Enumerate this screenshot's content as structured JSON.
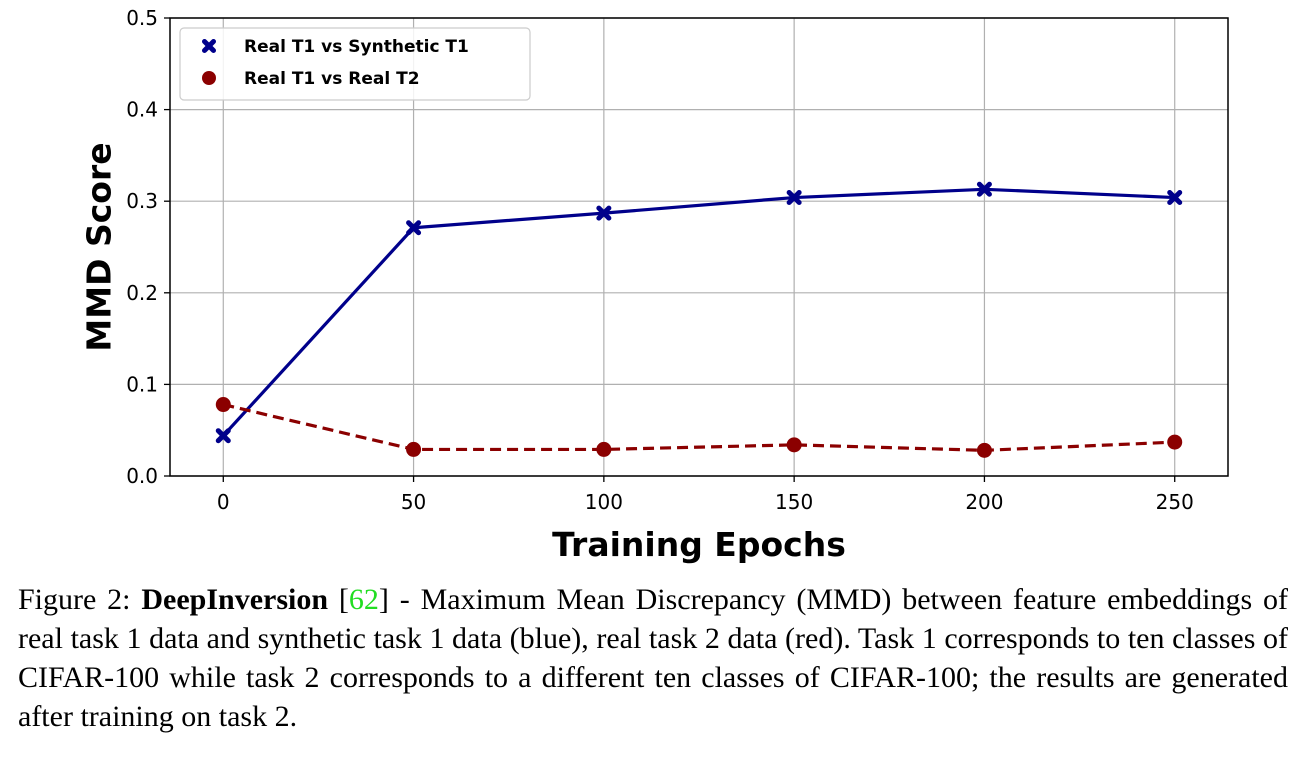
{
  "chart_data": {
    "type": "line",
    "xlabel": "Training Epochs",
    "ylabel": "MMD Score",
    "x": [
      0,
      50,
      100,
      150,
      200,
      250
    ],
    "xticks": [
      0,
      50,
      100,
      150,
      200,
      250
    ],
    "xlim": [
      -14,
      264
    ],
    "yticks": [
      0.0,
      0.1,
      0.2,
      0.3,
      0.4,
      0.5
    ],
    "ylim": [
      0.0,
      0.5
    ],
    "grid": true,
    "legend_position": "top-left",
    "series": [
      {
        "name": "Real T1 vs Synthetic T1",
        "values": [
          0.044,
          0.271,
          0.287,
          0.304,
          0.313,
          0.304
        ],
        "color": "#00008b",
        "marker": "x",
        "linestyle": "solid"
      },
      {
        "name": "Real T1 vs Real T2",
        "values": [
          0.078,
          0.029,
          0.029,
          0.034,
          0.028,
          0.037
        ],
        "color": "#8b0000",
        "marker": "circle",
        "linestyle": "dashed"
      }
    ]
  },
  "caption": {
    "prefix": "Figure 2: ",
    "bold": "DeepInversion",
    "open_bracket": " [",
    "ref": "62",
    "rest": "] - Maximum Mean Discrepancy (MMD) between feature embeddings of real task 1 data and synthetic task 1 data (blue), real task 2 data (red). Task 1 corresponds to ten classes of CIFAR-100 while task 2 corresponds to a different ten classes of CIFAR-100; the results are generated after training on task 2."
  }
}
